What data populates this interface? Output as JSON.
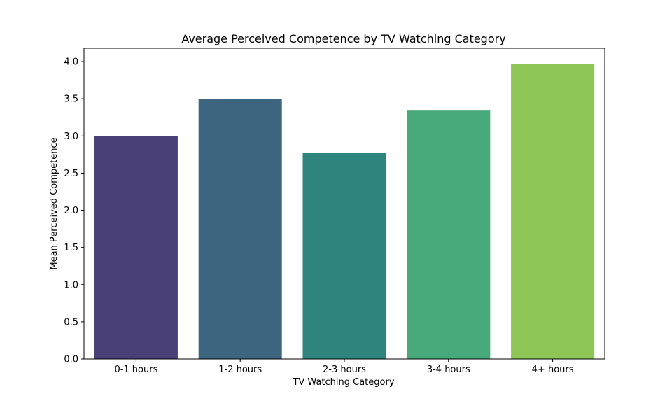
{
  "chart_data": {
    "type": "bar",
    "title": "Average Perceived Competence by TV Watching Category",
    "xlabel": "TV Watching Category",
    "ylabel": "Mean Perceived Competence",
    "categories": [
      "0-1 hours",
      "1-2 hours",
      "2-3 hours",
      "3-4 hours",
      "4+ hours"
    ],
    "values": [
      3.0,
      3.5,
      2.77,
      3.35,
      3.97
    ],
    "colors": [
      "#4a4078",
      "#3d6580",
      "#2e857e",
      "#48a97a",
      "#8dc556"
    ],
    "ylim": [
      0,
      4.18
    ],
    "yticks": [
      "0.0",
      "0.5",
      "1.0",
      "1.5",
      "2.0",
      "2.5",
      "3.0",
      "3.5",
      "4.0"
    ],
    "grid": false,
    "legend": false
  }
}
